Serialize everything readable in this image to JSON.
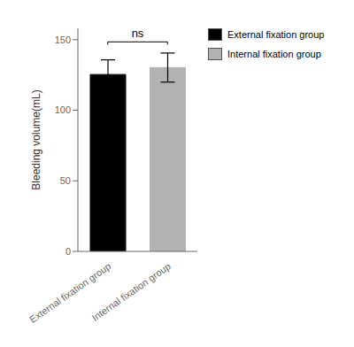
{
  "chart_data": {
    "type": "bar",
    "categories": [
      "External fixation group",
      "Internal fixation group"
    ],
    "values": [
      125.3,
      130.2
    ],
    "errors": [
      10.4,
      10.3
    ],
    "colors": [
      "#000000",
      "#b2b2b2"
    ],
    "ylabel": "Bleeding volume(mL)",
    "ylim": [
      0,
      158
    ],
    "yticks": [
      0,
      50,
      100,
      150
    ],
    "annotations": [
      "ns"
    ],
    "legend": "upper right",
    "grid": false
  }
}
